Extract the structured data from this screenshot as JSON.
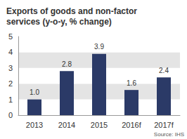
{
  "chart_data": {
    "type": "bar",
    "title": "Exports of goods and non-factor services (y-o-y, % change)",
    "source": "Source: IHS",
    "categories": [
      "2013",
      "2014",
      "2015",
      "2016f",
      "2017f"
    ],
    "values": [
      1.0,
      2.8,
      3.9,
      1.6,
      2.4
    ],
    "value_labels": [
      "1.0",
      "2.8",
      "3.9",
      "1.6",
      "2.4"
    ],
    "color": "#2b3a67",
    "ylim": [
      0,
      5
    ],
    "yticks": [
      0,
      1,
      2,
      3,
      4,
      5
    ],
    "grid": true,
    "data_labels": true
  }
}
